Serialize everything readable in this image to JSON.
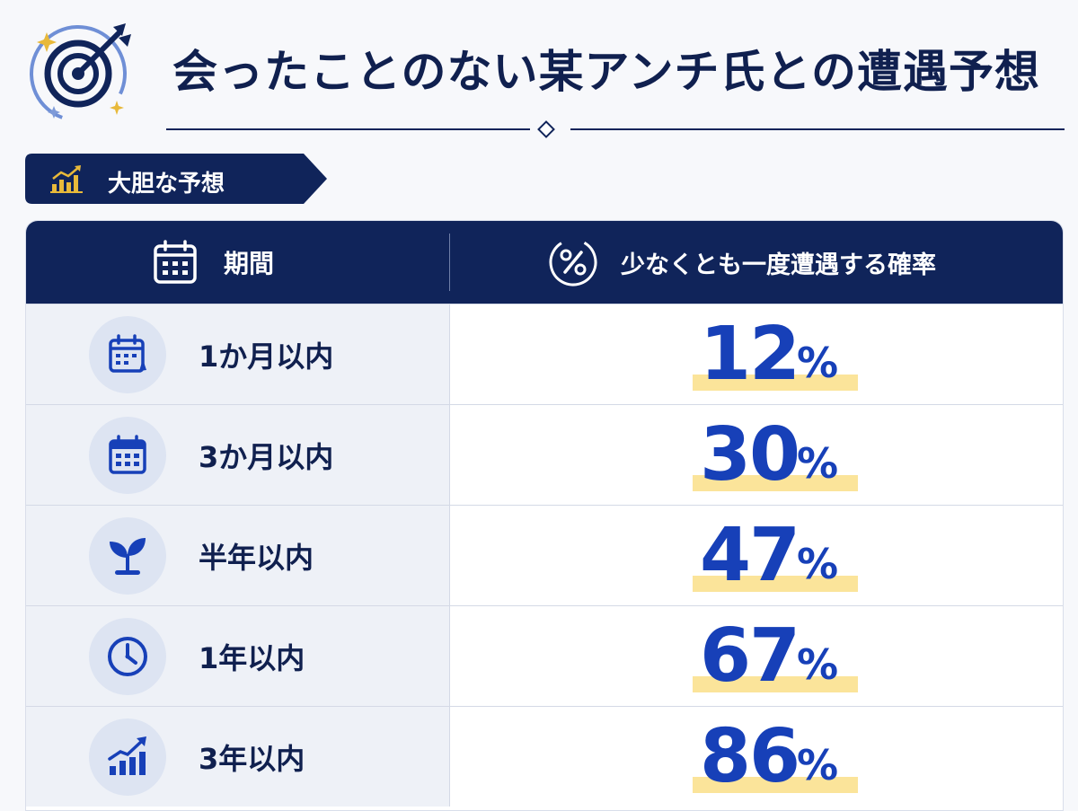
{
  "header": {
    "title": "会ったことのない某アンチ氏との遭遇予想",
    "logo_icon": "target-arrow-icon"
  },
  "section": {
    "label": "大胆な予想",
    "icon": "bar-chart-icon"
  },
  "colors": {
    "navy": "#10245a",
    "accent_blue": "#1740b8",
    "highlight_yellow": "#fbe49a",
    "sparkle_gold": "#e8b93a"
  },
  "chart_data": {
    "type": "table",
    "columns": [
      "期間",
      "少なくとも一度遭遇する確率"
    ],
    "column_icons": [
      "calendar-icon",
      "percent-circle-icon"
    ],
    "rows": [
      {
        "period": "1か月以内",
        "value": 12,
        "unit": "%",
        "icon": "calendar-icon"
      },
      {
        "period": "3か月以内",
        "value": 30,
        "unit": "%",
        "icon": "calendar-grid-icon"
      },
      {
        "period": "半年以内",
        "value": 47,
        "unit": "%",
        "icon": "sprout-icon"
      },
      {
        "period": "1年以内",
        "value": 67,
        "unit": "%",
        "icon": "clock-icon"
      },
      {
        "period": "3年以内",
        "value": 86,
        "unit": "%",
        "icon": "growth-chart-icon"
      }
    ]
  }
}
